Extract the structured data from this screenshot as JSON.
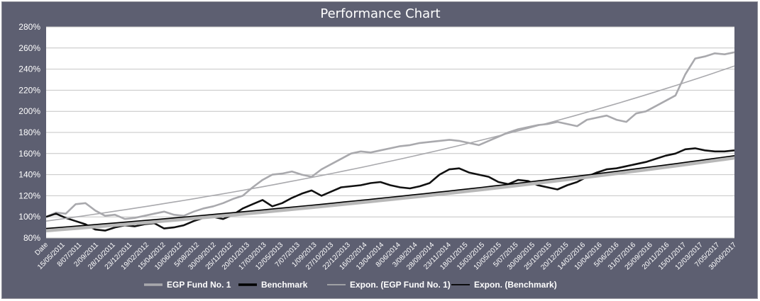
{
  "chart_data": {
    "type": "line",
    "title": "Performance Chart",
    "ylabel": "",
    "xlabel": "",
    "ylim": [
      80,
      280
    ],
    "y_ticks": [
      "80%",
      "100%",
      "120%",
      "140%",
      "160%",
      "180%",
      "200%",
      "220%",
      "240%",
      "260%",
      "280%"
    ],
    "x_tick_labels": [
      "Date",
      "15/05/2011",
      "8/07/2011",
      "2/09/2011",
      "28/10/2011",
      "23/12/2011",
      "19/02/2012",
      "15/04/2012",
      "10/06/2012",
      "5/08/2012",
      "30/09/2012",
      "25/11/2012",
      "20/01/2013",
      "17/03/2013",
      "12/05/2013",
      "7/07/2013",
      "1/09/2013",
      "27/10/2013",
      "22/12/2013",
      "16/02/2014",
      "13/04/2014",
      "8/06/2014",
      "3/08/2014",
      "28/09/2014",
      "23/11/2014",
      "18/01/2015",
      "15/03/2015",
      "10/05/2015",
      "5/07/2015",
      "30/08/2015",
      "25/10/2015",
      "20/12/2015",
      "14/02/2016",
      "10/04/2016",
      "5/06/2016",
      "31/07/2016",
      "25/09/2016",
      "20/11/2016",
      "15/01/2017",
      "12/03/2017",
      "7/05/2017",
      "30/06/2017"
    ],
    "grid": true,
    "legend_position": "bottom",
    "series": [
      {
        "name": "EGP Fund No. 1",
        "color": "#a9a9ad",
        "values": [
          100,
          104,
          103,
          112,
          113,
          106,
          101,
          102,
          98,
          99,
          101,
          103,
          105,
          102,
          101,
          105,
          108,
          110,
          113,
          117,
          120,
          128,
          135,
          140,
          141,
          143,
          140,
          138,
          145,
          150,
          155,
          160,
          162,
          161,
          163,
          165,
          167,
          168,
          170,
          171,
          172,
          173,
          172,
          170,
          168,
          172,
          176,
          180,
          183,
          185,
          187,
          188,
          190,
          188,
          186,
          192,
          194,
          196,
          192,
          190,
          198,
          200,
          205,
          210,
          215,
          235,
          250,
          252,
          255,
          254,
          256
        ]
      },
      {
        "name": "Benchmark",
        "color": "#111111",
        "values": [
          100,
          103,
          99,
          96,
          93,
          88,
          87,
          90,
          92,
          91,
          93,
          94,
          89,
          90,
          92,
          96,
          99,
          100,
          98,
          102,
          108,
          112,
          116,
          110,
          113,
          118,
          122,
          125,
          120,
          124,
          128,
          129,
          130,
          132,
          133,
          130,
          128,
          127,
          129,
          132,
          140,
          145,
          146,
          142,
          140,
          138,
          133,
          131,
          135,
          134,
          130,
          128,
          126,
          130,
          133,
          138,
          142,
          145,
          146,
          148,
          150,
          152,
          155,
          158,
          160,
          164,
          165,
          163,
          162,
          162,
          163
        ]
      },
      {
        "name": "Expon. (EGP Fund No. 1)",
        "color": "#a9a9ad",
        "trend": true,
        "start": 96,
        "end": 243
      },
      {
        "name": "Expon. (Benchmark)",
        "color": "#000000",
        "trend": true,
        "start": 89,
        "end": 158
      }
    ]
  }
}
